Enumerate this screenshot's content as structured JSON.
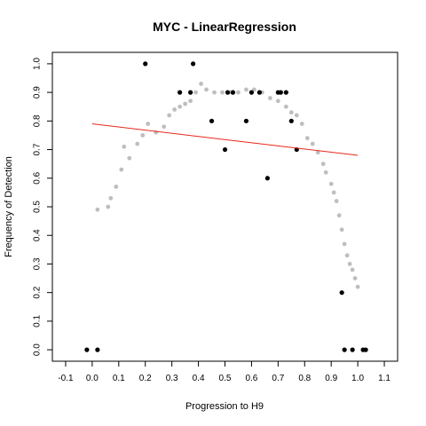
{
  "chart_data": {
    "type": "scatter",
    "title": "MYC - LinearRegression",
    "xlabel": "Progression to H9",
    "ylabel": "Frequency of Detection",
    "xlim": [
      -0.15,
      1.15
    ],
    "ylim": [
      -0.04,
      1.04
    ],
    "x_ticks": [
      -0.1,
      0.0,
      0.1,
      0.2,
      0.3,
      0.4,
      0.5,
      0.6,
      0.7,
      0.8,
      0.9,
      1.0,
      1.1
    ],
    "x_tick_labels": [
      "-0.1",
      "0.0",
      "0.1",
      "0.2",
      "0.3",
      "0.4",
      "0.5",
      "0.6",
      "0.7",
      "0.8",
      "0.9",
      "1.0",
      "1.1"
    ],
    "y_ticks": [
      0.0,
      0.1,
      0.2,
      0.3,
      0.4,
      0.5,
      0.6,
      0.7,
      0.8,
      0.9,
      1.0
    ],
    "y_tick_labels": [
      "0.0",
      "0.1",
      "0.2",
      "0.3",
      "0.4",
      "0.5",
      "0.6",
      "0.7",
      "0.8",
      "0.9",
      "1.0"
    ],
    "grid": false,
    "series": [
      {
        "kind": "smoothed-points",
        "color": "#bebebe",
        "x": [
          0.02,
          0.06,
          0.07,
          0.09,
          0.11,
          0.12,
          0.14,
          0.17,
          0.19,
          0.21,
          0.24,
          0.27,
          0.29,
          0.31,
          0.33,
          0.35,
          0.37,
          0.39,
          0.41,
          0.43,
          0.46,
          0.49,
          0.52,
          0.55,
          0.58,
          0.61,
          0.64,
          0.67,
          0.7,
          0.73,
          0.75,
          0.77,
          0.79,
          0.81,
          0.83,
          0.85,
          0.87,
          0.88,
          0.9,
          0.91,
          0.92,
          0.93,
          0.94,
          0.95,
          0.96,
          0.97,
          0.98,
          0.99,
          1.0
        ],
        "y": [
          0.49,
          0.5,
          0.53,
          0.57,
          0.63,
          0.71,
          0.67,
          0.72,
          0.75,
          0.79,
          0.76,
          0.78,
          0.82,
          0.84,
          0.85,
          0.86,
          0.87,
          0.9,
          0.93,
          0.91,
          0.9,
          0.9,
          0.9,
          0.9,
          0.91,
          0.91,
          0.9,
          0.88,
          0.87,
          0.85,
          0.83,
          0.82,
          0.79,
          0.74,
          0.72,
          0.69,
          0.65,
          0.62,
          0.58,
          0.55,
          0.52,
          0.47,
          0.42,
          0.37,
          0.33,
          0.3,
          0.28,
          0.25,
          0.22
        ]
      },
      {
        "kind": "observations",
        "color": "#000000",
        "x": [
          -0.02,
          0.02,
          0.2,
          0.33,
          0.37,
          0.38,
          0.45,
          0.5,
          0.51,
          0.53,
          0.58,
          0.6,
          0.63,
          0.66,
          0.7,
          0.71,
          0.73,
          0.75,
          0.77,
          0.94,
          0.95,
          0.98,
          1.02,
          1.03
        ],
        "y": [
          0.0,
          0.0,
          1.0,
          0.9,
          0.9,
          1.0,
          0.8,
          0.7,
          0.9,
          0.9,
          0.8,
          0.9,
          0.9,
          0.6,
          0.9,
          0.9,
          0.9,
          0.8,
          0.7,
          0.2,
          0.0,
          0.0,
          0.0,
          0.0
        ]
      },
      {
        "kind": "regression-line",
        "color": "#e8261b",
        "x": [
          0.0,
          1.0
        ],
        "y": [
          0.79,
          0.68
        ]
      }
    ]
  }
}
